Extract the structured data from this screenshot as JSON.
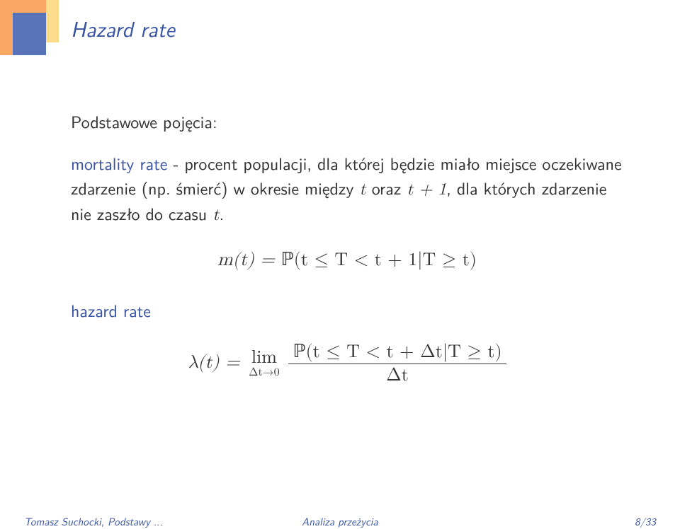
{
  "colors": {
    "accent_blue": "#3953a4",
    "block_blue": "#5973b8",
    "orange": "#f8a764",
    "yellow": "#fadc8c",
    "text": "#333333",
    "background": "#ffffff"
  },
  "slide": {
    "title": "Hazard rate",
    "intro": "Podstawowe pojęcia:",
    "mortality_term": "mortality rate",
    "mortality_text_1": " - procent populacji, dla której będzie miało miejsce oczekiwane zdarzenie (np. śmierć) w okresie między ",
    "var_t1": "t",
    "mortality_text_2": " oraz ",
    "var_t2": "t + 1",
    "mortality_text_3": ", dla których zdarzenie nie zaszło do czasu ",
    "var_t3": "t",
    "period": ".",
    "eq1_lhs": "m(t) = ",
    "eq1_prob": "ℙ",
    "eq1_rhs": "(t ≤ T < t + 1|T ≥ t)",
    "hazard_term": "hazard rate",
    "eq2_lambda": "λ(t) = ",
    "eq2_lim": "lim",
    "eq2_lim_sub": "Δt→0",
    "eq2_num_prob": "ℙ",
    "eq2_num_rest": "(t ≤ T < t + Δt|T ≥ t)",
    "eq2_den": "Δt"
  },
  "footer": {
    "left": "Tomasz Suchocki, Podstawy ...",
    "center": "Analiza przeżycia",
    "right": "8/33"
  }
}
